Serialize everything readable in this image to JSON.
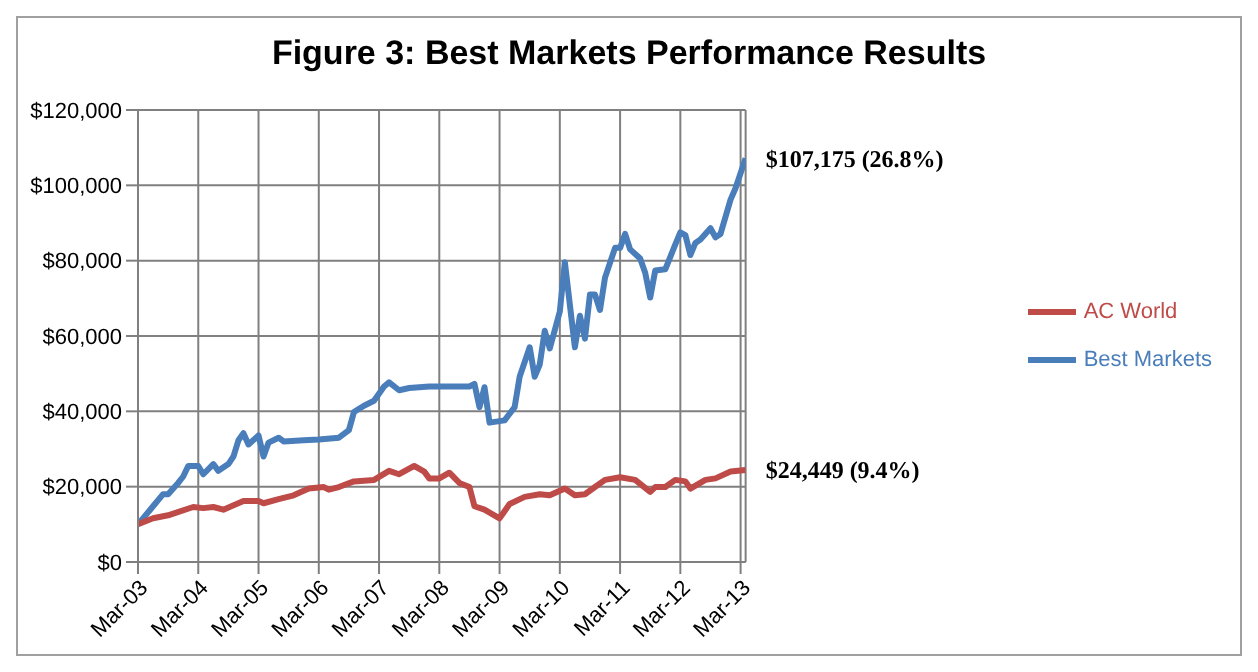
{
  "chart_data": {
    "type": "line",
    "title": "Figure 3: Best Markets Performance Results",
    "xlim": [
      "2003-03",
      "2013-04"
    ],
    "xticks": [
      {
        "value": "2003-03",
        "label": "Mar-03"
      },
      {
        "value": "2004-03",
        "label": "Mar-04"
      },
      {
        "value": "2005-03",
        "label": "Mar-05"
      },
      {
        "value": "2006-03",
        "label": "Mar-06"
      },
      {
        "value": "2007-03",
        "label": "Mar-07"
      },
      {
        "value": "2008-03",
        "label": "Mar-08"
      },
      {
        "value": "2009-03",
        "label": "Mar-09"
      },
      {
        "value": "2010-03",
        "label": "Mar-10"
      },
      {
        "value": "2011-03",
        "label": "Mar-11"
      },
      {
        "value": "2012-03",
        "label": "Mar-12"
      },
      {
        "value": "2013-03",
        "label": "Mar-13"
      }
    ],
    "ylim": [
      0,
      120000
    ],
    "yticks": [
      {
        "value": 0,
        "label": "$0"
      },
      {
        "value": 20000,
        "label": "$20,000"
      },
      {
        "value": 40000,
        "label": "$40,000"
      },
      {
        "value": 60000,
        "label": "$60,000"
      },
      {
        "value": 80000,
        "label": "$80,000"
      },
      {
        "value": 100000,
        "label": "$100,000"
      },
      {
        "value": 120000,
        "label": "$120,000"
      }
    ],
    "grid": true,
    "legend": "right",
    "marker": "none",
    "line_style": "solid",
    "series": [
      {
        "name": "Best Markets",
        "color": "#4a7ebb",
        "x": [
          "2003-03",
          "2003-06",
          "2003-08",
          "2003-09",
          "2003-11",
          "2003-12",
          "2004-01",
          "2004-03",
          "2004-04",
          "2004-06",
          "2004-07",
          "2004-09",
          "2004-10",
          "2004-11",
          "2004-12",
          "2005-01",
          "2005-03",
          "2005-04",
          "2005-05",
          "2005-07",
          "2005-08",
          "2005-12",
          "2006-03",
          "2006-07",
          "2006-09",
          "2006-10",
          "2006-12",
          "2007-02",
          "2007-04",
          "2007-05",
          "2007-07",
          "2007-09",
          "2008-01",
          "2008-03",
          "2008-09",
          "2008-10",
          "2008-11",
          "2008-12",
          "2009-01",
          "2009-04",
          "2009-06",
          "2009-07",
          "2009-09",
          "2009-10",
          "2009-11",
          "2009-12",
          "2010-01",
          "2010-03",
          "2010-04",
          "2010-06",
          "2010-07",
          "2010-08",
          "2010-09",
          "2010-10",
          "2010-11",
          "2010-12",
          "2011-02",
          "2011-03",
          "2011-04",
          "2011-05",
          "2011-07",
          "2011-08",
          "2011-09",
          "2011-10",
          "2011-12",
          "2012-02",
          "2012-03",
          "2012-04",
          "2012-05",
          "2012-06",
          "2012-07",
          "2012-09",
          "2012-10",
          "2012-11",
          "2013-01",
          "2013-02",
          "2013-04"
        ],
        "values": [
          10000,
          14800,
          18000,
          18000,
          21000,
          22700,
          25500,
          25500,
          23300,
          26000,
          24200,
          26000,
          28000,
          32300,
          34200,
          31200,
          33600,
          28000,
          31700,
          33000,
          32000,
          32300,
          32500,
          33000,
          35000,
          39800,
          41500,
          42800,
          46600,
          47700,
          45600,
          46200,
          46600,
          46600,
          46600,
          47300,
          41100,
          46400,
          37000,
          37600,
          41100,
          49200,
          57000,
          49200,
          52400,
          61400,
          56700,
          66500,
          79600,
          57000,
          65400,
          59300,
          71000,
          71000,
          66900,
          75500,
          83400,
          83400,
          87100,
          83000,
          80600,
          76800,
          70200,
          77400,
          77700,
          84300,
          87500,
          86800,
          81500,
          84700,
          85600,
          88600,
          86200,
          87100,
          96200,
          99300,
          107175
        ]
      },
      {
        "name": "AC World",
        "color": "#be4b48",
        "x": [
          "2003-03",
          "2003-06",
          "2003-09",
          "2004-02",
          "2004-04",
          "2004-06",
          "2004-08",
          "2004-12",
          "2005-03",
          "2005-04",
          "2005-07",
          "2005-10",
          "2006-01",
          "2006-04",
          "2006-05",
          "2006-07",
          "2006-10",
          "2007-02",
          "2007-05",
          "2007-07",
          "2007-10",
          "2007-12",
          "2008-01",
          "2008-03",
          "2008-05",
          "2008-07",
          "2008-09",
          "2008-10",
          "2008-12",
          "2009-03",
          "2009-05",
          "2009-08",
          "2009-11",
          "2010-01",
          "2010-04",
          "2010-06",
          "2010-08",
          "2010-10",
          "2010-12",
          "2011-03",
          "2011-06",
          "2011-09",
          "2011-10",
          "2011-12",
          "2012-02",
          "2012-04",
          "2012-05",
          "2012-08",
          "2012-10",
          "2013-01",
          "2013-04"
        ],
        "values": [
          10000,
          11600,
          12400,
          14600,
          14300,
          14600,
          13900,
          16200,
          16200,
          15600,
          16700,
          17700,
          19500,
          19900,
          19200,
          19900,
          21400,
          21800,
          24200,
          23300,
          25500,
          24000,
          22200,
          22200,
          23700,
          21000,
          19900,
          14800,
          13900,
          11600,
          15400,
          17300,
          18000,
          17700,
          19500,
          17700,
          18000,
          19900,
          21800,
          22500,
          21800,
          18600,
          19900,
          19900,
          21800,
          21400,
          19500,
          21800,
          22200,
          24000,
          24449
        ]
      }
    ],
    "annotations": [
      {
        "text": "$107,175 (26.8%)",
        "x": "2013-04",
        "y": 107175
      },
      {
        "text": "$24,449 (9.4%)",
        "x": "2013-04",
        "y": 24449
      }
    ]
  }
}
